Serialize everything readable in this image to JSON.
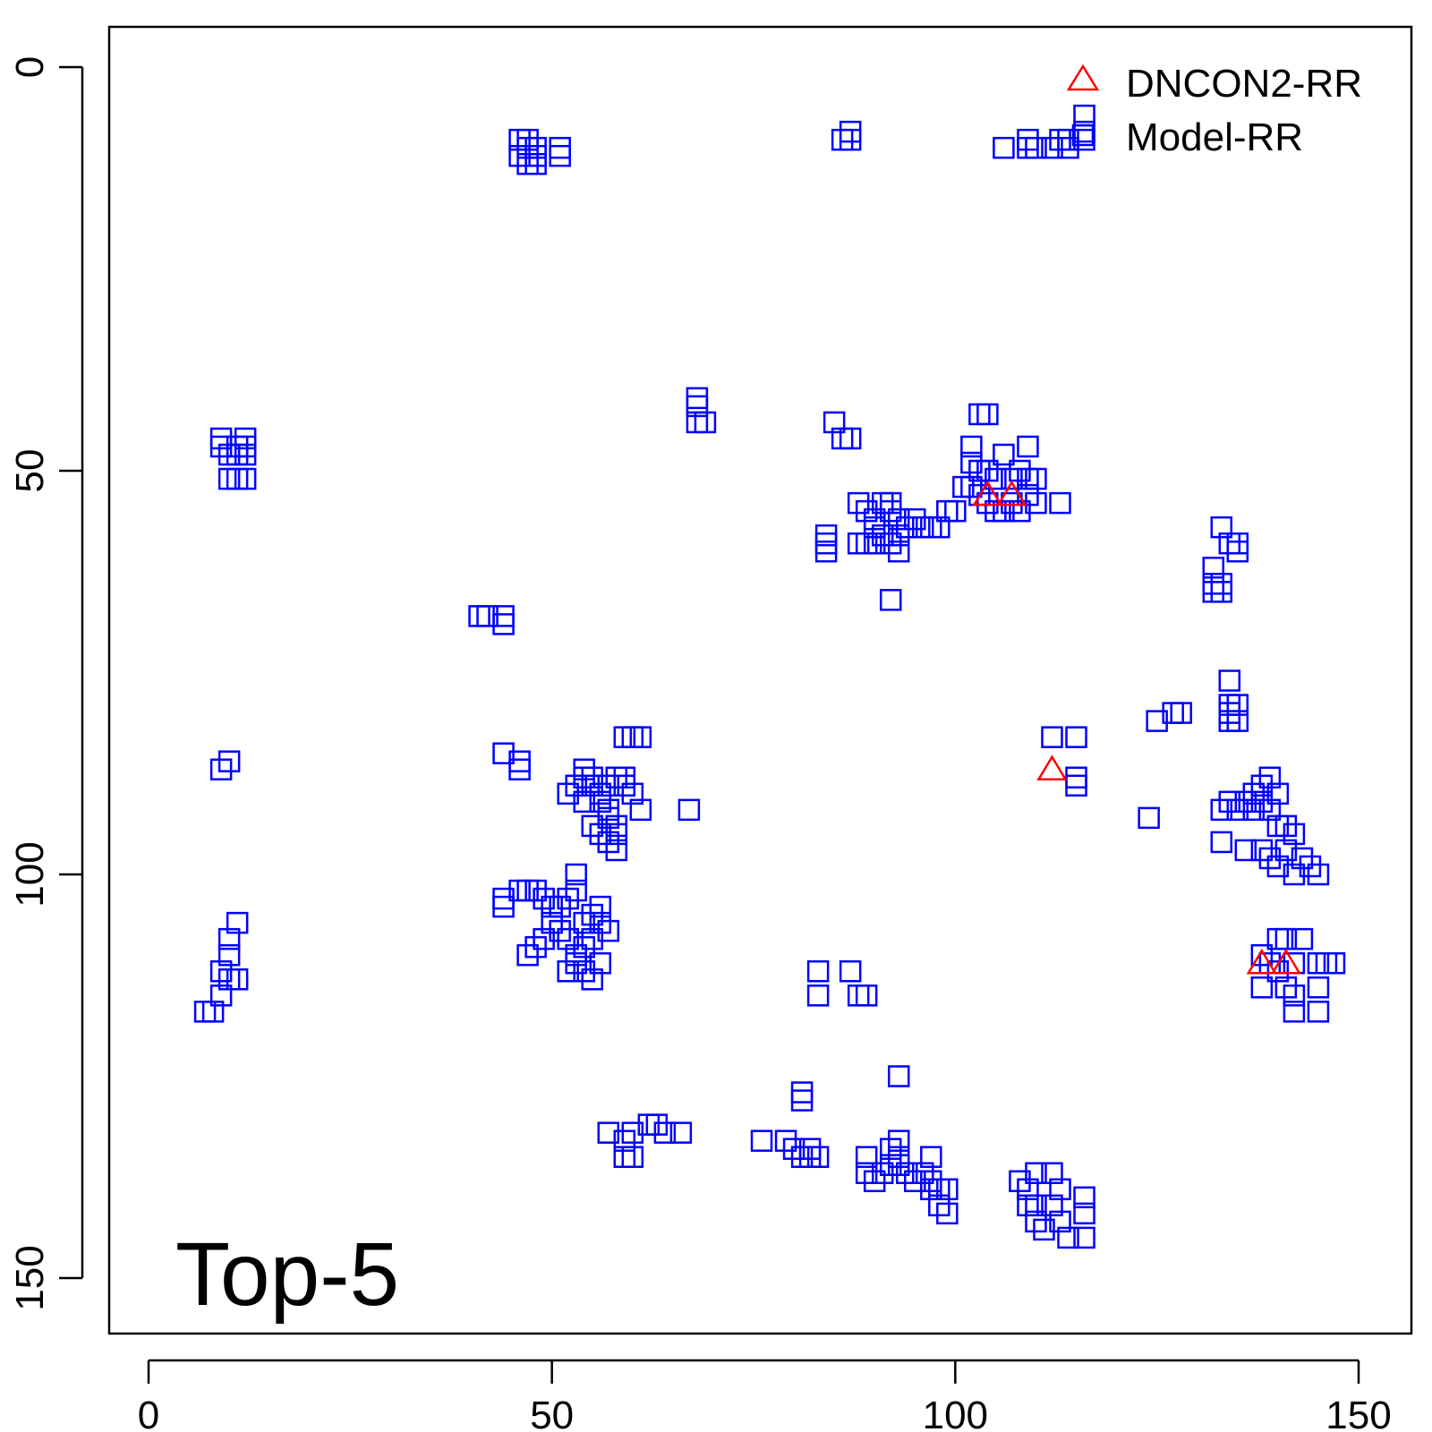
{
  "chart_data": {
    "type": "scatter",
    "title": "",
    "xlabel": "",
    "ylabel": "",
    "xlim": [
      -5,
      157
    ],
    "ylim": [
      -5,
      157
    ],
    "y_axis_reversed": true,
    "grid": false,
    "legend_position": "top-right",
    "annotation": "Top-5",
    "x_ticks": [
      "0",
      "50",
      "100",
      "150"
    ],
    "y_ticks": [
      "0",
      "50",
      "100",
      "150"
    ],
    "colors": {
      "DNCON2-RR": "#ff0000",
      "Model-RR": "#0000ff",
      "axis": "#000000"
    },
    "series": [
      {
        "name": "DNCON2-RR",
        "marker": "triangle",
        "points": [
          [
            104,
            53
          ],
          [
            107,
            53
          ],
          [
            112,
            87
          ],
          [
            138,
            111
          ],
          [
            141,
            111
          ]
        ]
      },
      {
        "name": "Model-RR",
        "marker": "square",
        "points": [
          [
            46,
            9
          ],
          [
            46,
            11
          ],
          [
            47,
            9
          ],
          [
            47,
            10
          ],
          [
            47,
            12
          ],
          [
            48,
            10
          ],
          [
            48,
            11
          ],
          [
            48,
            12
          ],
          [
            51,
            10
          ],
          [
            51,
            11
          ],
          [
            86,
            9
          ],
          [
            87,
            8
          ],
          [
            87,
            9
          ],
          [
            106,
            10
          ],
          [
            109,
            9
          ],
          [
            109,
            10
          ],
          [
            110,
            10
          ],
          [
            112,
            10
          ],
          [
            113,
            9
          ],
          [
            114,
            9
          ],
          [
            114,
            10
          ],
          [
            116,
            6
          ],
          [
            116,
            8
          ],
          [
            116,
            9
          ],
          [
            9,
            46
          ],
          [
            9,
            47
          ],
          [
            10,
            48
          ],
          [
            11,
            47
          ],
          [
            11,
            48
          ],
          [
            11,
            51
          ],
          [
            12,
            46
          ],
          [
            12,
            47
          ],
          [
            12,
            48
          ],
          [
            12,
            51
          ],
          [
            10,
            51
          ],
          [
            68,
            41
          ],
          [
            68,
            42
          ],
          [
            68,
            44
          ],
          [
            69,
            44
          ],
          [
            85,
            44
          ],
          [
            86,
            46
          ],
          [
            87,
            46
          ],
          [
            103,
            43
          ],
          [
            104,
            43
          ],
          [
            102,
            47
          ],
          [
            102,
            49
          ],
          [
            103,
            50
          ],
          [
            104,
            50
          ],
          [
            105,
            51
          ],
          [
            106,
            48
          ],
          [
            107,
            51
          ],
          [
            108,
            50
          ],
          [
            109,
            47
          ],
          [
            109,
            51
          ],
          [
            110,
            51
          ],
          [
            101,
            52
          ],
          [
            102,
            52
          ],
          [
            103,
            53
          ],
          [
            104,
            54
          ],
          [
            105,
            55
          ],
          [
            106,
            55
          ],
          [
            107,
            54
          ],
          [
            108,
            55
          ],
          [
            109,
            53
          ],
          [
            110,
            54
          ],
          [
            113,
            54
          ],
          [
            100,
            55
          ],
          [
            99,
            55
          ],
          [
            88,
            54
          ],
          [
            89,
            55
          ],
          [
            90,
            56
          ],
          [
            91,
            54
          ],
          [
            92,
            55
          ],
          [
            93,
            56
          ],
          [
            94,
            57
          ],
          [
            95,
            56
          ],
          [
            96,
            57
          ],
          [
            97,
            57
          ],
          [
            98,
            57
          ],
          [
            92,
            54
          ],
          [
            90,
            57
          ],
          [
            91,
            58
          ],
          [
            92,
            59
          ],
          [
            93,
            60
          ],
          [
            84,
            58
          ],
          [
            84,
            59
          ],
          [
            84,
            60
          ],
          [
            88,
            59
          ],
          [
            89,
            59
          ],
          [
            90,
            59
          ],
          [
            93,
            58
          ],
          [
            92,
            66
          ],
          [
            133,
            57
          ],
          [
            134,
            59
          ],
          [
            135,
            59
          ],
          [
            135,
            60
          ],
          [
            132,
            62
          ],
          [
            132,
            64
          ],
          [
            133,
            64
          ],
          [
            132,
            65
          ],
          [
            133,
            65
          ],
          [
            41,
            68
          ],
          [
            42,
            68
          ],
          [
            44,
            68
          ],
          [
            44,
            69
          ],
          [
            134,
            76
          ],
          [
            134,
            79
          ],
          [
            134,
            80
          ],
          [
            135,
            79
          ],
          [
            135,
            81
          ],
          [
            134,
            81
          ],
          [
            125,
            81
          ],
          [
            127,
            80
          ],
          [
            128,
            80
          ],
          [
            112,
            83
          ],
          [
            115,
            83
          ],
          [
            115,
            88
          ],
          [
            115,
            89
          ],
          [
            44,
            85
          ],
          [
            46,
            86
          ],
          [
            46,
            87
          ],
          [
            9,
            87
          ],
          [
            10,
            86
          ],
          [
            59,
            83
          ],
          [
            60,
            83
          ],
          [
            61,
            83
          ],
          [
            54,
            87
          ],
          [
            54,
            88
          ],
          [
            55,
            88
          ],
          [
            55,
            89
          ],
          [
            56,
            90
          ],
          [
            57,
            89
          ],
          [
            58,
            88
          ],
          [
            59,
            88
          ],
          [
            59,
            89
          ],
          [
            60,
            90
          ],
          [
            61,
            92
          ],
          [
            54,
            91
          ],
          [
            53,
            89
          ],
          [
            52,
            90
          ],
          [
            56,
            91
          ],
          [
            57,
            92
          ],
          [
            57,
            93
          ],
          [
            58,
            94
          ],
          [
            58,
            95
          ],
          [
            57,
            96
          ],
          [
            56,
            95
          ],
          [
            55,
            94
          ],
          [
            58,
            97
          ],
          [
            67,
            92
          ],
          [
            124,
            93
          ],
          [
            134,
            91
          ],
          [
            135,
            92
          ],
          [
            136,
            91
          ],
          [
            137,
            90
          ],
          [
            137,
            92
          ],
          [
            138,
            91
          ],
          [
            139,
            92
          ],
          [
            140,
            94
          ],
          [
            141,
            94
          ],
          [
            142,
            95
          ],
          [
            138,
            89
          ],
          [
            139,
            88
          ],
          [
            140,
            90
          ],
          [
            133,
            92
          ],
          [
            133,
            96
          ],
          [
            136,
            97
          ],
          [
            138,
            97
          ],
          [
            139,
            98
          ],
          [
            140,
            99
          ],
          [
            141,
            97
          ],
          [
            142,
            100
          ],
          [
            143,
            98
          ],
          [
            144,
            99
          ],
          [
            145,
            100
          ],
          [
            53,
            100
          ],
          [
            53,
            102
          ],
          [
            52,
            103
          ],
          [
            51,
            104
          ],
          [
            50,
            104
          ],
          [
            49,
            103
          ],
          [
            48,
            102
          ],
          [
            47,
            102
          ],
          [
            46,
            102
          ],
          [
            44,
            103
          ],
          [
            44,
            104
          ],
          [
            54,
            106
          ],
          [
            55,
            105
          ],
          [
            56,
            104
          ],
          [
            56,
            106
          ],
          [
            57,
            107
          ],
          [
            55,
            108
          ],
          [
            54,
            109
          ],
          [
            53,
            110
          ],
          [
            52,
            108
          ],
          [
            51,
            107
          ],
          [
            50,
            106
          ],
          [
            49,
            108
          ],
          [
            48,
            109
          ],
          [
            47,
            110
          ],
          [
            53,
            111
          ],
          [
            54,
            112
          ],
          [
            55,
            113
          ],
          [
            56,
            111
          ],
          [
            52,
            112
          ],
          [
            11,
            106
          ],
          [
            10,
            108
          ],
          [
            10,
            110
          ],
          [
            9,
            112
          ],
          [
            10,
            113
          ],
          [
            11,
            113
          ],
          [
            9,
            115
          ],
          [
            7,
            117
          ],
          [
            8,
            117
          ],
          [
            140,
            108
          ],
          [
            141,
            108
          ],
          [
            143,
            108
          ],
          [
            138,
            110
          ],
          [
            139,
            111
          ],
          [
            140,
            112
          ],
          [
            142,
            111
          ],
          [
            145,
            111
          ],
          [
            146,
            111
          ],
          [
            147,
            111
          ],
          [
            138,
            114
          ],
          [
            141,
            114
          ],
          [
            142,
            115
          ],
          [
            145,
            114
          ],
          [
            145,
            117
          ],
          [
            142,
            117
          ],
          [
            83,
            112
          ],
          [
            83,
            115
          ],
          [
            87,
            112
          ],
          [
            88,
            115
          ],
          [
            89,
            115
          ],
          [
            93,
            125
          ],
          [
            81,
            127
          ],
          [
            81,
            128
          ],
          [
            57,
            132
          ],
          [
            59,
            133
          ],
          [
            59,
            135
          ],
          [
            60,
            132
          ],
          [
            60,
            135
          ],
          [
            62,
            131
          ],
          [
            63,
            131
          ],
          [
            64,
            132
          ],
          [
            66,
            132
          ],
          [
            76,
            133
          ],
          [
            79,
            133
          ],
          [
            80,
            134
          ],
          [
            81,
            135
          ],
          [
            82,
            134
          ],
          [
            82,
            135
          ],
          [
            83,
            135
          ],
          [
            89,
            135
          ],
          [
            89,
            137
          ],
          [
            90,
            138
          ],
          [
            91,
            137
          ],
          [
            92,
            136
          ],
          [
            92,
            134
          ],
          [
            93,
            133
          ],
          [
            93,
            135
          ],
          [
            93,
            136
          ],
          [
            94,
            137
          ],
          [
            95,
            138
          ],
          [
            96,
            137
          ],
          [
            97,
            135
          ],
          [
            97,
            138
          ],
          [
            97,
            139
          ],
          [
            98,
            139
          ],
          [
            98,
            141
          ],
          [
            99,
            139
          ],
          [
            99,
            142
          ],
          [
            108,
            138
          ],
          [
            109,
            139
          ],
          [
            109,
            141
          ],
          [
            110,
            137
          ],
          [
            110,
            141
          ],
          [
            110,
            143
          ],
          [
            111,
            144
          ],
          [
            113,
            143
          ],
          [
            114,
            145
          ],
          [
            116,
            140
          ],
          [
            116,
            142
          ],
          [
            116,
            145
          ],
          [
            112,
            141
          ],
          [
            113,
            139
          ],
          [
            112,
            137
          ]
        ]
      }
    ]
  }
}
